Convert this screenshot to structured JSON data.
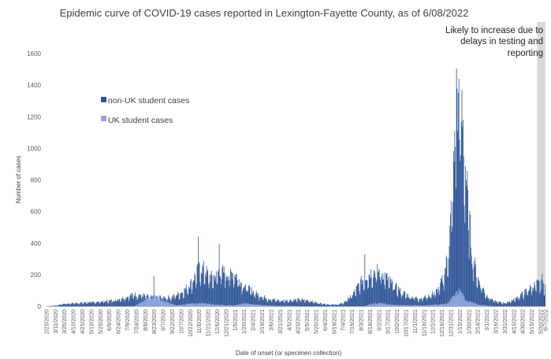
{
  "chart_data": {
    "type": "bar",
    "stacked": true,
    "title": "Epidemic curve of COVID-19 cases reported in Lexington-Fayette County, as of 6/08/2022",
    "xlabel": "Date of onset (or specimen collection)",
    "ylabel": "Number of cases",
    "x_range": [
      "2/25/2020",
      "6/7/2022"
    ],
    "ylim": [
      0,
      1600
    ],
    "yticks": [
      0,
      200,
      400,
      600,
      800,
      1000,
      1200,
      1400,
      1600
    ],
    "x_ticks": [
      "2/25/2020",
      "3/11/2020",
      "3/26/2020",
      "4/10/2020",
      "4/25/2020",
      "5/10/2020",
      "5/25/2020",
      "6/9/2020",
      "6/24/2020",
      "7/9/2020",
      "7/24/2020",
      "8/8/2020",
      "8/23/2020",
      "9/7/2020",
      "9/22/2020",
      "10/7/2020",
      "10/22/2020",
      "11/6/2020",
      "11/21/2020",
      "12/6/2020",
      "12/21/2020",
      "1/5/2021",
      "1/20/2021",
      "2/4/2021",
      "2/19/2021",
      "3/6/2021",
      "3/21/2021",
      "4/5/2021",
      "4/20/2021",
      "5/5/2021",
      "5/20/2021",
      "6/4/2021",
      "6/19/2021",
      "7/4/2021",
      "7/19/2021",
      "8/3/2021",
      "8/18/2021",
      "9/2/2021",
      "9/17/2021",
      "10/2/2021",
      "10/17/2021",
      "11/1/2021",
      "11/16/2021",
      "12/1/2021",
      "12/16/2021",
      "12/31/2021",
      "1/15/2022",
      "1/30/2022",
      "2/14/2022",
      "3/1/2022",
      "3/16/2022",
      "3/31/2022",
      "4/15/2022",
      "4/30/2022",
      "5/15/2022",
      "5/30/2022",
      "6/7/2022"
    ],
    "grid": false,
    "legend_position": "upper-left inside plot",
    "series": [
      {
        "name": "non-UK student cases",
        "color": "#2F5597",
        "keypoints": [
          [
            "2/25/2020",
            0
          ],
          [
            "3/15/2020",
            5
          ],
          [
            "3/25/2020",
            15
          ],
          [
            "4/15/2020",
            20
          ],
          [
            "5/10/2020",
            25
          ],
          [
            "6/1/2020",
            30
          ],
          [
            "6/20/2020",
            40
          ],
          [
            "7/10/2020",
            60
          ],
          [
            "7/20/2020",
            75
          ],
          [
            "8/5/2020",
            70
          ],
          [
            "8/20/2020",
            55
          ],
          [
            "9/1/2020",
            60
          ],
          [
            "9/20/2020",
            55
          ],
          [
            "10/10/2020",
            90
          ],
          [
            "10/25/2020",
            150
          ],
          [
            "11/1/2020",
            200
          ],
          [
            "11/8/2020",
            240
          ],
          [
            "11/15/2020",
            230
          ],
          [
            "11/25/2020",
            180
          ],
          [
            "12/5/2020",
            190
          ],
          [
            "12/10/2020",
            225
          ],
          [
            "12/25/2020",
            200
          ],
          [
            "1/5/2021",
            210
          ],
          [
            "1/15/2021",
            150
          ],
          [
            "1/30/2021",
            105
          ],
          [
            "2/15/2021",
            70
          ],
          [
            "3/5/2021",
            45
          ],
          [
            "3/25/2021",
            35
          ],
          [
            "4/10/2021",
            40
          ],
          [
            "4/25/2021",
            42
          ],
          [
            "5/10/2021",
            35
          ],
          [
            "5/25/2021",
            20
          ],
          [
            "6/10/2021",
            12
          ],
          [
            "6/25/2021",
            10
          ],
          [
            "7/5/2021",
            20
          ],
          [
            "7/20/2021",
            70
          ],
          [
            "8/5/2021",
            160
          ],
          [
            "8/20/2021",
            210
          ],
          [
            "9/1/2021",
            220
          ],
          [
            "9/10/2021",
            200
          ],
          [
            "9/25/2021",
            140
          ],
          [
            "10/10/2021",
            90
          ],
          [
            "10/25/2021",
            60
          ],
          [
            "11/10/2021",
            50
          ],
          [
            "11/25/2021",
            65
          ],
          [
            "12/10/2021",
            100
          ],
          [
            "12/20/2021",
            190
          ],
          [
            "12/28/2021",
            350
          ],
          [
            "1/3/2022",
            700
          ],
          [
            "1/10/2022",
            1150
          ],
          [
            "1/15/2022",
            1250
          ],
          [
            "1/20/2022",
            1150
          ],
          [
            "1/28/2022",
            700
          ],
          [
            "2/5/2022",
            330
          ],
          [
            "2/15/2022",
            170
          ],
          [
            "3/1/2022",
            70
          ],
          [
            "3/15/2022",
            30
          ],
          [
            "4/1/2022",
            20
          ],
          [
            "4/15/2022",
            40
          ],
          [
            "5/1/2022",
            80
          ],
          [
            "5/15/2022",
            120
          ],
          [
            "5/25/2022",
            140
          ],
          [
            "6/7/2022",
            130
          ]
        ]
      },
      {
        "name": "UK student cases",
        "color": "#8FAADC",
        "keypoints": [
          [
            "2/25/2020",
            0
          ],
          [
            "7/20/2020",
            0
          ],
          [
            "8/1/2020",
            20
          ],
          [
            "8/15/2020",
            55
          ],
          [
            "8/25/2020",
            60
          ],
          [
            "9/10/2020",
            30
          ],
          [
            "9/30/2020",
            5
          ],
          [
            "10/20/2020",
            15
          ],
          [
            "11/15/2020",
            20
          ],
          [
            "12/5/2020",
            10
          ],
          [
            "1/5/2021",
            5
          ],
          [
            "1/20/2021",
            20
          ],
          [
            "2/10/2021",
            10
          ],
          [
            "3/10/2021",
            3
          ],
          [
            "4/30/2021",
            0
          ],
          [
            "8/10/2021",
            0
          ],
          [
            "8/20/2021",
            15
          ],
          [
            "9/5/2021",
            20
          ],
          [
            "9/25/2021",
            8
          ],
          [
            "11/15/2021",
            5
          ],
          [
            "12/25/2021",
            15
          ],
          [
            "1/10/2022",
            80
          ],
          [
            "1/15/2022",
            100
          ],
          [
            "1/25/2022",
            40
          ],
          [
            "2/15/2022",
            10
          ],
          [
            "3/15/2022",
            0
          ],
          [
            "6/7/2022",
            0
          ]
        ]
      }
    ],
    "peaks": [
      [
        "8/23/2020",
        190
      ],
      [
        "11/5/2020",
        440
      ],
      [
        "12/10/2020",
        395
      ],
      [
        "8/10/2021",
        330
      ],
      [
        "1/10/2022",
        1505
      ],
      [
        "1/14/2022",
        1440
      ],
      [
        "6/2/2022",
        205
      ]
    ],
    "legend": [
      "non-UK student cases",
      "UK student cases"
    ],
    "annotation": {
      "lines": [
        "Likely to increase due to",
        "delays in testing and",
        "reporting"
      ],
      "shaded_from": "5/25/2022",
      "shaded_to": "6/7/2022",
      "shade_color": "#D9D9D9"
    }
  }
}
